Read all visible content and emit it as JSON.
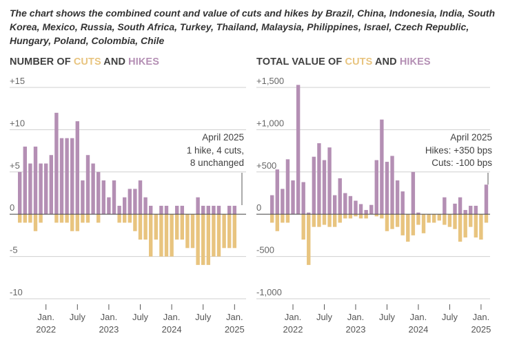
{
  "subtitle": "The chart shows the combined count and value of cuts and hikes by Brazil, China, Indonesia, India, South Korea, Mexico, Russia, South Africa, Turkey, Thailand, Malaysia, Philippines, Israel, Czech Republic, Hungary, Poland, Colombia, Chile",
  "colors": {
    "cuts": "#e8c47f",
    "hikes": "#b48fb4",
    "grid": "#cfcfcf",
    "zero": "#555555",
    "text": "#404040"
  },
  "chart_data": [
    {
      "type": "bar",
      "title_parts": {
        "prefix": "NUMBER OF ",
        "cuts": "CUTS",
        "and": " AND ",
        "hikes": "HIKES"
      },
      "ylim": [
        -10,
        15
      ],
      "yticks": [
        15,
        10,
        5,
        0,
        -5,
        -10
      ],
      "ytick_labels": [
        "+15",
        "+10",
        "+5",
        "0",
        "-5",
        "-10"
      ],
      "x_ticks": [
        {
          "index": 5,
          "month": "Jan.",
          "year": "2022"
        },
        {
          "index": 11,
          "month": "July",
          "year": ""
        },
        {
          "index": 17,
          "month": "Jan.",
          "year": "2023"
        },
        {
          "index": 23,
          "month": "July",
          "year": ""
        },
        {
          "index": 29,
          "month": "Jan.",
          "year": "2024"
        },
        {
          "index": 35,
          "month": "July",
          "year": ""
        },
        {
          "index": 41,
          "month": "Jan.",
          "year": "2025"
        }
      ],
      "series": [
        {
          "name": "Hikes",
          "values": [
            5,
            8,
            6,
            8,
            6,
            6,
            7,
            12,
            9,
            9,
            9,
            11,
            4,
            7,
            6,
            5,
            4,
            2,
            4,
            1,
            2,
            3,
            3,
            4,
            2,
            1,
            0,
            1,
            1,
            0,
            1,
            1,
            0,
            0,
            2,
            1,
            1,
            1,
            1,
            0,
            1,
            1
          ]
        },
        {
          "name": "Cuts",
          "values": [
            -1,
            -1,
            -1,
            -2,
            -1,
            0,
            0,
            -1,
            -1,
            -1,
            -2,
            -2,
            -1,
            -1,
            0,
            -1,
            0,
            0,
            0,
            -1,
            -1,
            -1,
            -2,
            -3,
            -3,
            -5,
            -3,
            -5,
            -5,
            -5,
            -3,
            -3,
            -4,
            -4,
            -6,
            -6,
            -6,
            -5,
            -5,
            -4,
            -4,
            -4
          ]
        }
      ],
      "annotation": [
        "April 2025",
        "1 hike, 4 cuts,",
        "8 unchanged"
      ]
    },
    {
      "type": "bar",
      "title_parts": {
        "prefix": "TOTAL VALUE OF ",
        "cuts": "CUTS",
        "and": " AND ",
        "hikes": "HIKES"
      },
      "ylim": [
        -1000,
        1500
      ],
      "yticks": [
        1500,
        1000,
        500,
        0,
        -500,
        -1000
      ],
      "ytick_labels": [
        "+1,500",
        "+1,000",
        "+500",
        "0",
        "-500",
        "-1,000"
      ],
      "x_ticks": [
        {
          "index": 4,
          "month": "Jan.",
          "year": "2022"
        },
        {
          "index": 10,
          "month": "July",
          "year": ""
        },
        {
          "index": 16,
          "month": "Jan.",
          "year": "2023"
        },
        {
          "index": 22,
          "month": "July",
          "year": ""
        },
        {
          "index": 28,
          "month": "Jan.",
          "year": "2024"
        },
        {
          "index": 34,
          "month": "July",
          "year": ""
        },
        {
          "index": 40,
          "month": "Jan.",
          "year": "2025"
        }
      ],
      "series": [
        {
          "name": "Hikes",
          "values": [
            225,
            530,
            300,
            650,
            400,
            1530,
            380,
            20,
            680,
            840,
            640,
            790,
            225,
            425,
            250,
            215,
            160,
            120,
            50,
            110,
            640,
            1120,
            620,
            690,
            400,
            270,
            0,
            500,
            20,
            0,
            0,
            0,
            0,
            200,
            0,
            125,
            200,
            50,
            100,
            100,
            0,
            350
          ]
        },
        {
          "name": "Cuts",
          "values": [
            -100,
            -200,
            -100,
            -100,
            0,
            0,
            -300,
            -600,
            -150,
            -150,
            -125,
            -150,
            -150,
            -100,
            -50,
            -50,
            -25,
            -50,
            -50,
            0,
            -25,
            -50,
            -200,
            -175,
            -150,
            -250,
            -325,
            -250,
            -125,
            -225,
            -100,
            -100,
            -75,
            -125,
            -150,
            -175,
            -325,
            -275,
            -150,
            -275,
            -300,
            -100
          ]
        }
      ],
      "annotation": [
        "April 2025",
        "Hikes: +350 bps",
        "Cuts: -100 bps"
      ]
    }
  ]
}
